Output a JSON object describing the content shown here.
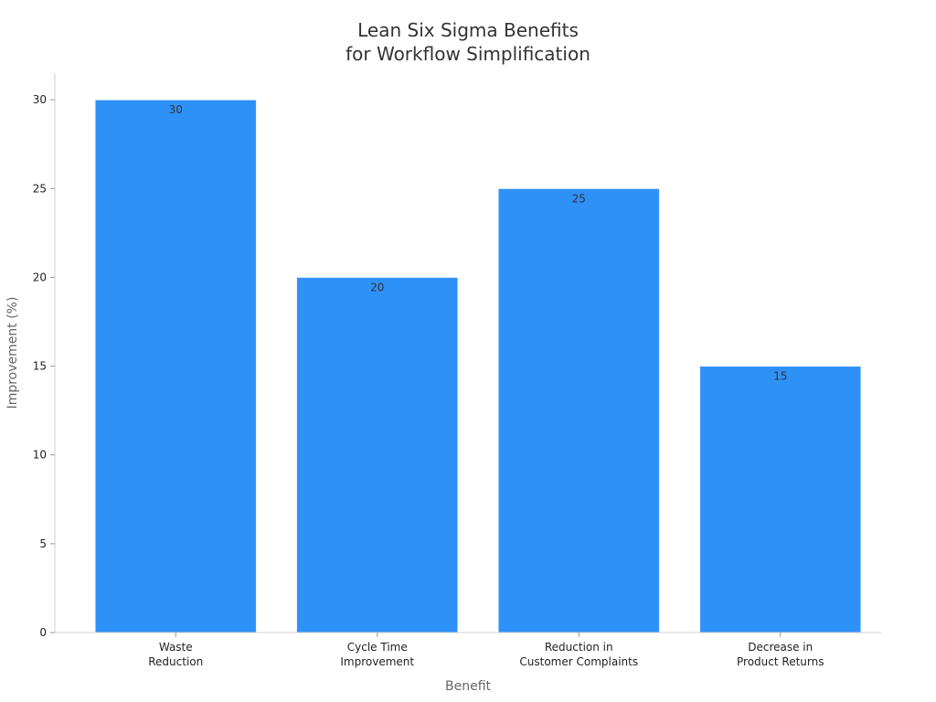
{
  "chart_data": {
    "type": "bar",
    "title_lines": [
      "Lean Six Sigma Benefits",
      "for Workflow Simplification"
    ],
    "xlabel": "Benefit",
    "ylabel": "Improvement (%)",
    "categories": [
      [
        "Waste",
        "Reduction"
      ],
      [
        "Cycle Time",
        "Improvement"
      ],
      [
        "Reduction in",
        "Customer Complaints"
      ],
      [
        "Decrease in",
        "Product Returns"
      ]
    ],
    "values": [
      30,
      20,
      25,
      15
    ],
    "data_labels": [
      "30",
      "20",
      "25",
      "15"
    ],
    "ylim": [
      0,
      31.5
    ],
    "yticks": [
      0,
      5,
      10,
      15,
      20,
      25,
      30
    ],
    "grid": false,
    "bar_color": "#2e91f8"
  }
}
